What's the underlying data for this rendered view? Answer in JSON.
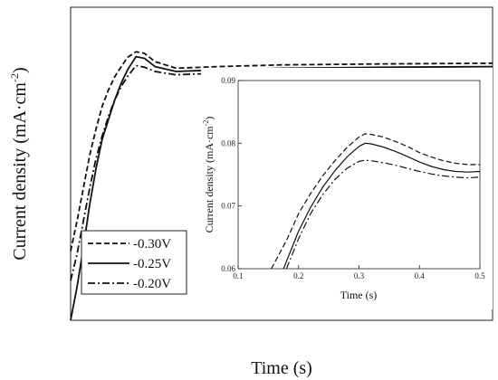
{
  "chart_data": [
    {
      "type": "line",
      "xlabel": "Time (s)",
      "ylabel": "Current density (mA·cm",
      "ylabel_sup": "-2",
      "ylabel_close": ")",
      "legend_position": "bottom-left",
      "series": [
        {
          "name": "-0.30V",
          "style": "dashed",
          "x": [
            0.0,
            0.03,
            0.06,
            0.09,
            0.12,
            0.15,
            0.18,
            0.21,
            0.24,
            0.27,
            0.31,
            0.35,
            0.4,
            0.5,
            0.7,
            1.0,
            1.5,
            2.0
          ],
          "y": [
            0.021,
            0.03,
            0.04,
            0.05,
            0.058,
            0.065,
            0.07,
            0.074,
            0.077,
            0.0798,
            0.0815,
            0.081,
            0.0785,
            0.0765,
            0.077,
            0.0775,
            0.0778,
            0.078
          ]
        },
        {
          "name": "-0.25V",
          "style": "solid",
          "x": [
            0.0,
            0.03,
            0.06,
            0.09,
            0.12,
            0.15,
            0.18,
            0.21,
            0.24,
            0.27,
            0.31,
            0.35,
            0.4,
            0.5,
            0.7,
            1.0,
            1.5,
            2.0
          ],
          "y": [
            0.0,
            0.01,
            0.022,
            0.035,
            0.046,
            0.055,
            0.061,
            0.067,
            0.072,
            0.076,
            0.08,
            0.0795,
            0.077,
            0.0755,
            0.076,
            0.0765,
            0.0768,
            0.077
          ]
        },
        {
          "name": "-0.20V",
          "style": "dashdot",
          "x": [
            0.0,
            0.03,
            0.06,
            0.09,
            0.12,
            0.15,
            0.18,
            0.21,
            0.24,
            0.27,
            0.31,
            0.35,
            0.4,
            0.5,
            0.7,
            1.0,
            1.5,
            2.0
          ],
          "y": [
            0.012,
            0.02,
            0.03,
            0.04,
            0.049,
            0.056,
            0.062,
            0.067,
            0.071,
            0.074,
            0.0773,
            0.0768,
            0.0755,
            0.0745,
            0.075,
            0.0753,
            0.0755,
            0.0757
          ]
        }
      ],
      "xlim": [
        0.0,
        2.0
      ],
      "ylim": [
        0.0,
        0.095
      ],
      "xticks": [],
      "yticks": []
    },
    {
      "type": "line",
      "inset": true,
      "xlabel": "Time (s)",
      "ylabel": "Current density (mA·cm",
      "ylabel_sup": "-2",
      "ylabel_close": ")",
      "series": [
        {
          "name": "-0.30V",
          "style": "dashed",
          "x": [
            0.155,
            0.18,
            0.2,
            0.22,
            0.24,
            0.26,
            0.28,
            0.3,
            0.31,
            0.32,
            0.34,
            0.36,
            0.38,
            0.4,
            0.42,
            0.44,
            0.46,
            0.48,
            0.5
          ],
          "y": [
            0.06,
            0.0645,
            0.0688,
            0.072,
            0.0748,
            0.0772,
            0.0793,
            0.081,
            0.0815,
            0.0814,
            0.081,
            0.0803,
            0.0795,
            0.0785,
            0.0778,
            0.0772,
            0.0768,
            0.0766,
            0.0766
          ]
        },
        {
          "name": "-0.25V",
          "style": "solid",
          "x": [
            0.175,
            0.2,
            0.22,
            0.24,
            0.26,
            0.28,
            0.3,
            0.31,
            0.32,
            0.34,
            0.36,
            0.38,
            0.4,
            0.42,
            0.44,
            0.46,
            0.48,
            0.5
          ],
          "y": [
            0.06,
            0.066,
            0.0698,
            0.073,
            0.0756,
            0.0778,
            0.0795,
            0.08,
            0.0799,
            0.0794,
            0.0787,
            0.0779,
            0.077,
            0.0763,
            0.0758,
            0.0755,
            0.0754,
            0.0755
          ]
        },
        {
          "name": "-0.20V",
          "style": "dashdot",
          "x": [
            0.18,
            0.2,
            0.22,
            0.24,
            0.26,
            0.28,
            0.3,
            0.31,
            0.32,
            0.34,
            0.36,
            0.38,
            0.4,
            0.42,
            0.44,
            0.46,
            0.48,
            0.5
          ],
          "y": [
            0.06,
            0.0648,
            0.0688,
            0.0718,
            0.0742,
            0.076,
            0.0771,
            0.0773,
            0.0772,
            0.0769,
            0.0765,
            0.076,
            0.0755,
            0.0751,
            0.0748,
            0.0746,
            0.0745,
            0.0746
          ]
        }
      ],
      "xlim": [
        0.1,
        0.5
      ],
      "ylim": [
        0.06,
        0.09
      ],
      "xticks": [
        "0.1",
        "0.2",
        "0.3",
        "0.4",
        "0.5"
      ],
      "yticks": [
        "0.06",
        "0.07",
        "0.08",
        "0.09"
      ]
    }
  ]
}
